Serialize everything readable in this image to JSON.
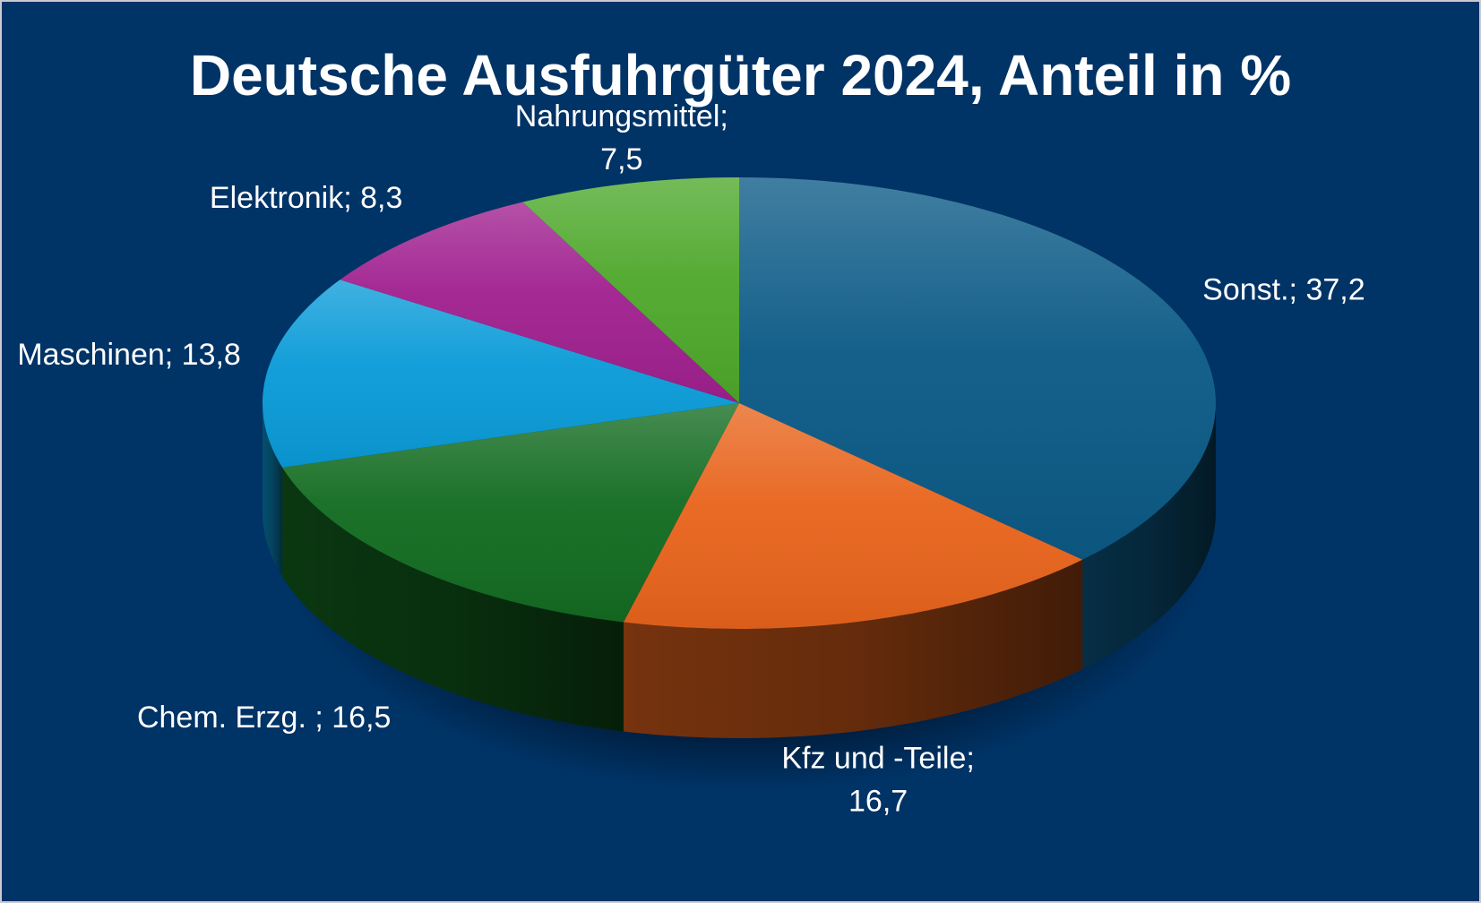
{
  "chart_data": {
    "type": "pie",
    "title": "Deutsche Ausfuhrgüter 2024, Anteil in %",
    "legend": "none",
    "slices": [
      {
        "name": "Sonst.",
        "value": 37.2,
        "label": [
          "Sonst.; 37,2"
        ],
        "color": "#0b5a86"
      },
      {
        "name": "Kfz und -Teile",
        "value": 16.7,
        "label": [
          "Kfz und -Teile;",
          "16,7"
        ],
        "color": "#e8641c"
      },
      {
        "name": "Chem. Erzg. ",
        "value": 16.5,
        "label": [
          "Chem. Erzg. ; 16,5"
        ],
        "color": "#136c21"
      },
      {
        "name": "Maschinen",
        "value": 13.8,
        "label": [
          "Maschinen; 13,8"
        ],
        "color": "#0a9bd8"
      },
      {
        "name": "Elektronik",
        "value": 8.3,
        "label": [
          "Elektronik; 8,3"
        ],
        "color": "#a0208f"
      },
      {
        "name": "Nahrungsmittel",
        "value": 7.5,
        "label": [
          "Nahrungsmittel;",
          "7,5"
        ],
        "color": "#4ea82b"
      }
    ]
  }
}
